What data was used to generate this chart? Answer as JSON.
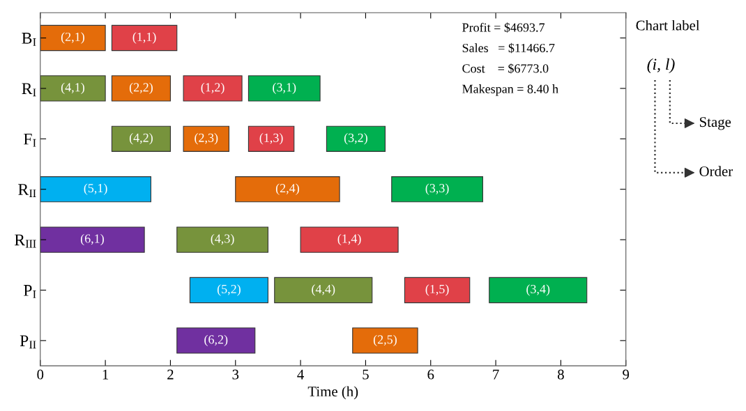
{
  "chart_data": {
    "type": "bar",
    "orientation": "horizontal",
    "xlabel": "Time (h)",
    "categories": [
      "B$_{I}$",
      "R$_{I}$",
      "F$_{I}$",
      "R$_{II}$",
      "R$_{III}$",
      "P$_{I}$",
      "P$_{II}$"
    ],
    "xlim": [
      0,
      9
    ],
    "xticks": [
      0,
      1,
      2,
      3,
      4,
      5,
      6,
      7,
      8,
      9
    ],
    "grid": false,
    "legend": false,
    "series": [
      {
        "color": "#e04148",
        "base": [
          1.1,
          2.2,
          3.2,
          null,
          4.0,
          5.6,
          null
        ],
        "values": [
          1.0,
          0.9,
          0.7,
          null,
          1.5,
          1.0,
          null
        ]
      },
      {
        "color": "#e46c0a",
        "base": [
          0,
          1.1,
          2.2,
          3.0,
          null,
          null,
          4.8
        ],
        "values": [
          1.0,
          0.9,
          0.7,
          1.6,
          null,
          null,
          1.0
        ]
      },
      {
        "color": "#00b050",
        "base": [
          null,
          3.2,
          4.4,
          5.4,
          null,
          6.9,
          null
        ],
        "values": [
          null,
          1.1,
          0.9,
          1.4,
          null,
          1.5,
          null
        ]
      },
      {
        "color": "#77933c",
        "base": [
          null,
          0,
          1.1,
          null,
          2.1,
          3.6,
          null
        ],
        "values": [
          null,
          1.0,
          0.9,
          null,
          1.4,
          1.5,
          null
        ]
      },
      {
        "color": "#00b0f0",
        "base": [
          null,
          null,
          null,
          0,
          null,
          2.3,
          null
        ],
        "values": [
          null,
          null,
          null,
          1.7,
          null,
          1.2,
          null
        ]
      },
      {
        "color": "#7030a0",
        "base": [
          null,
          null,
          null,
          null,
          0,
          null,
          2.1
        ],
        "values": [
          null,
          null,
          null,
          null,
          1.6,
          null,
          1.2
        ]
      }
    ],
    "annotations": [
      "Profit = $4693.7",
      "Sales   = $11466.7",
      "Cost    = $6773.0",
      "Makespan = 8.40 h",
      "Chart label",
      "(i, l)",
      "Stage",
      "Order",
      "(1,1)",
      "(1,2)",
      "(1,3)",
      "(1,4)",
      "(1,5)",
      "(2,1)",
      "(2,2)",
      "(2,3)",
      "(2,4)",
      "(2,5)",
      "(3,1)",
      "(3,2)",
      "(3,3)",
      "(3,4)",
      "(4,1)",
      "(4,2)",
      "(4,3)",
      "(4,4)",
      "(5,1)",
      "(5,2)",
      "(6,1)",
      "(6,2)"
    ]
  }
}
